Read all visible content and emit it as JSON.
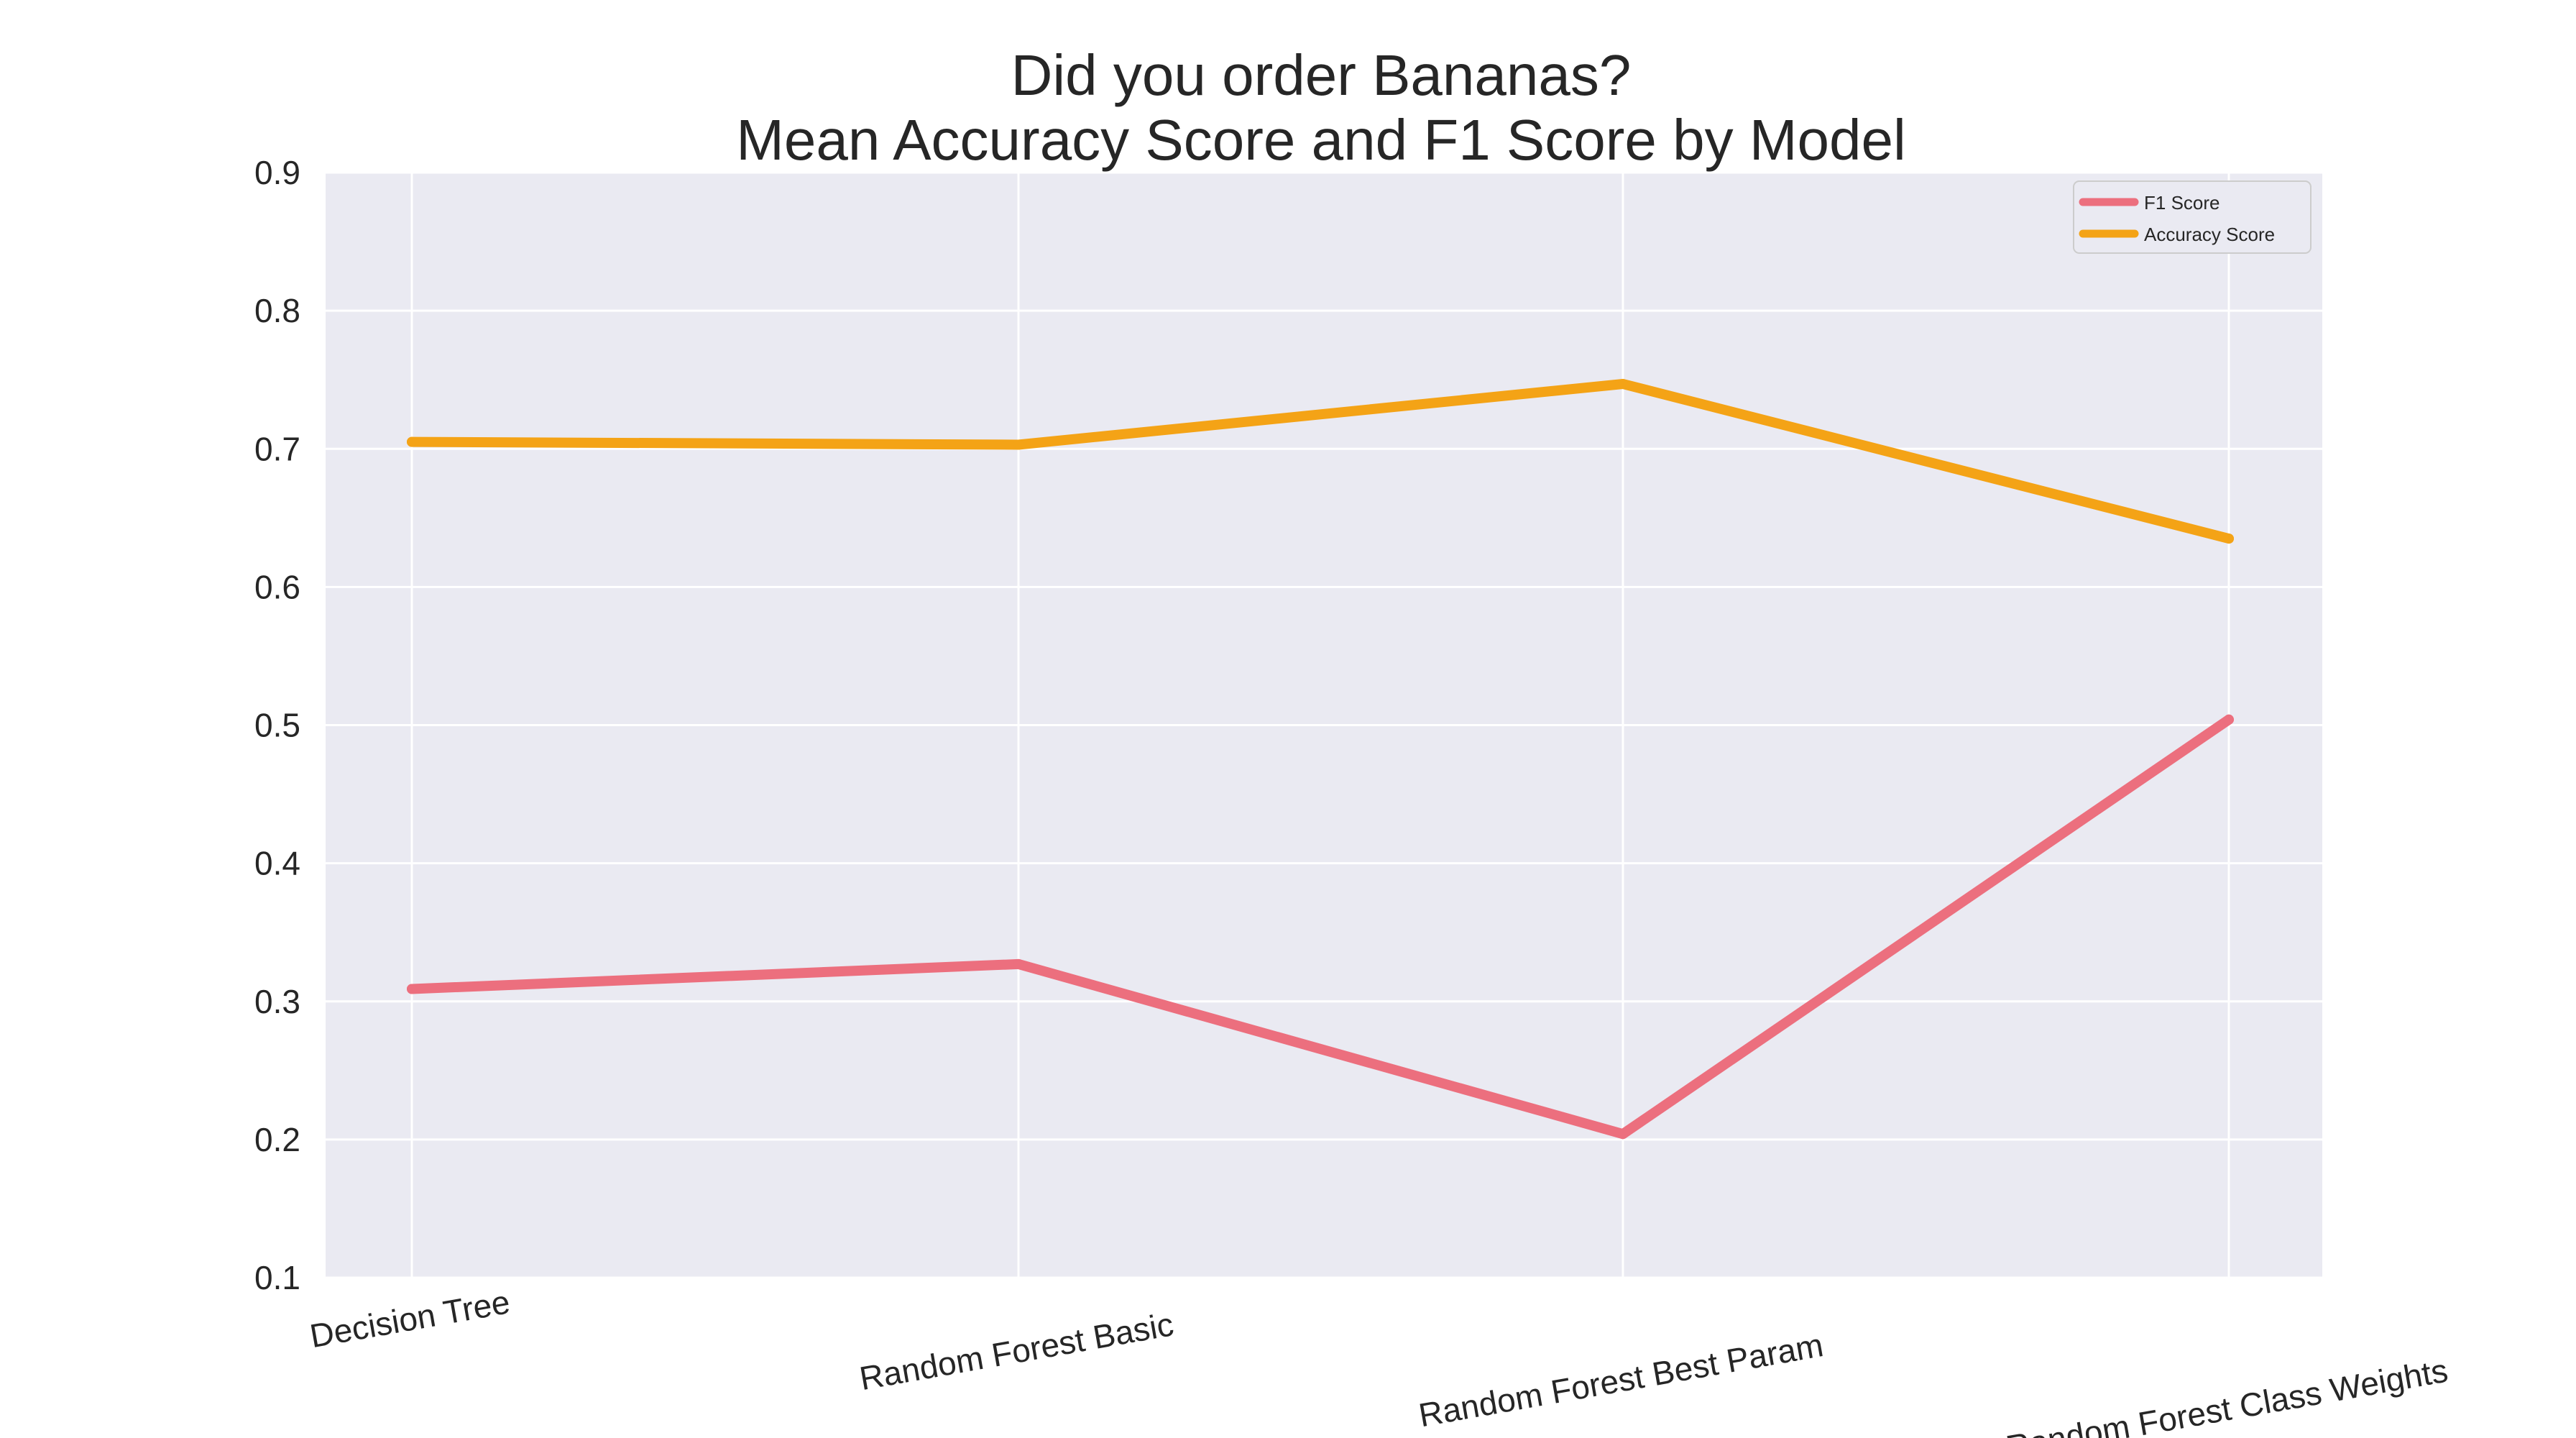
{
  "chart_data": {
    "type": "line",
    "title": [
      "Did you order Bananas?",
      "Mean Accuracy Score and F1 Score by Model"
    ],
    "xlabel": "",
    "ylabel": "",
    "categories": [
      "Decision Tree",
      "Random Forest Basic",
      "Random Forest Best Param",
      "Random Forest Class Weights"
    ],
    "ylim": [
      0.1,
      0.9
    ],
    "yticks": [
      "0.1",
      "0.2",
      "0.3",
      "0.4",
      "0.5",
      "0.6",
      "0.7",
      "0.8",
      "0.9"
    ],
    "grid": true,
    "legend_position": "top-right",
    "series": [
      {
        "name": "F1 Score",
        "color": "#ec6f7e",
        "values": [
          0.309,
          0.327,
          0.204,
          0.504
        ]
      },
      {
        "name": "Accuracy Score",
        "color": "#f4a316",
        "values": [
          0.705,
          0.703,
          0.747,
          0.635
        ]
      }
    ],
    "background_color": "#eaeaf2",
    "grid_color": "#ffffff"
  }
}
